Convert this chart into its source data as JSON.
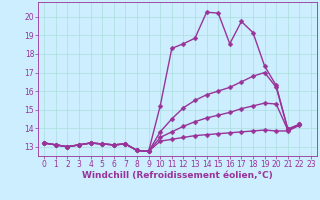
{
  "background_color": "#cceeff",
  "grid_color": "#aadddd",
  "line_color": "#993399",
  "marker": "D",
  "markersize": 2.5,
  "linewidth": 1.0,
  "xlabel": "Windchill (Refroidissement éolien,°C)",
  "xlabel_fontsize": 6.5,
  "tick_fontsize": 5.5,
  "xlim": [
    -0.5,
    23.5
  ],
  "ylim": [
    12.5,
    20.8
  ],
  "yticks": [
    13,
    14,
    15,
    16,
    17,
    18,
    19,
    20
  ],
  "xticks": [
    0,
    1,
    2,
    3,
    4,
    5,
    6,
    7,
    8,
    9,
    10,
    11,
    12,
    13,
    14,
    15,
    16,
    17,
    18,
    19,
    20,
    21,
    22,
    23
  ],
  "series": [
    [
      13.2,
      13.1,
      13.0,
      13.1,
      13.2,
      13.15,
      13.1,
      13.15,
      12.8,
      12.75,
      15.2,
      18.3,
      18.55,
      18.85,
      20.25,
      20.2,
      18.55,
      19.75,
      19.15,
      17.35,
      16.3,
      13.95,
      14.2
    ],
    [
      13.2,
      13.1,
      13.0,
      13.1,
      13.2,
      13.15,
      13.1,
      13.15,
      12.8,
      12.75,
      13.8,
      14.5,
      15.1,
      15.5,
      15.8,
      16.0,
      16.2,
      16.5,
      16.8,
      17.0,
      16.2,
      13.95,
      14.2
    ],
    [
      13.2,
      13.1,
      13.0,
      13.1,
      13.2,
      13.15,
      13.1,
      13.15,
      12.8,
      12.75,
      13.5,
      13.8,
      14.1,
      14.35,
      14.55,
      14.7,
      14.85,
      15.05,
      15.2,
      15.35,
      15.3,
      13.9,
      14.2
    ],
    [
      13.2,
      13.1,
      13.0,
      13.1,
      13.2,
      13.15,
      13.1,
      13.15,
      12.8,
      12.75,
      13.3,
      13.4,
      13.5,
      13.6,
      13.65,
      13.7,
      13.75,
      13.8,
      13.85,
      13.9,
      13.85,
      13.85,
      14.15
    ]
  ]
}
